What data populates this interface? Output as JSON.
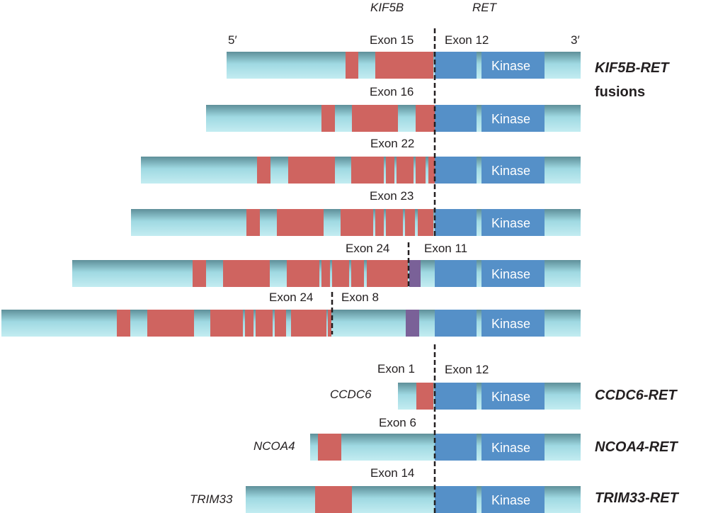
{
  "header": {
    "gene_left": "KIF5B",
    "gene_right": "RET",
    "five_prime": "5′",
    "three_prime": "3′"
  },
  "kinase_label": "Kinase",
  "colors": {
    "partner_red": "#cf6460",
    "ret_blue": "#5590c8",
    "purple": "#7a6198",
    "body_cyan": "#a6dfe8",
    "dashed_line": "#231f20"
  },
  "kif5b_group": {
    "label_line1": "KIF5B-RET",
    "label_line2": "fusions",
    "variants": [
      {
        "partner_exon": "Exon 15",
        "ret_exon": "Exon 12"
      },
      {
        "partner_exon": "Exon 16"
      },
      {
        "partner_exon": "Exon 22"
      },
      {
        "partner_exon": "Exon 23"
      },
      {
        "partner_exon": "Exon 24",
        "ret_exon": "Exon 11"
      },
      {
        "partner_exon": "Exon 24",
        "ret_exon": "Exon 8"
      }
    ]
  },
  "other_fusions": [
    {
      "partner_gene": "CCDC6",
      "partner_exon": "Exon 1",
      "ret_exon": "Exon 12",
      "fusion_name": "CCDC6-RET"
    },
    {
      "partner_gene": "NCOA4",
      "partner_exon": "Exon 6",
      "fusion_name": "NCOA4-RET"
    },
    {
      "partner_gene": "TRIM33",
      "partner_exon": "Exon 14",
      "fusion_name": "TRIM33-RET"
    }
  ]
}
